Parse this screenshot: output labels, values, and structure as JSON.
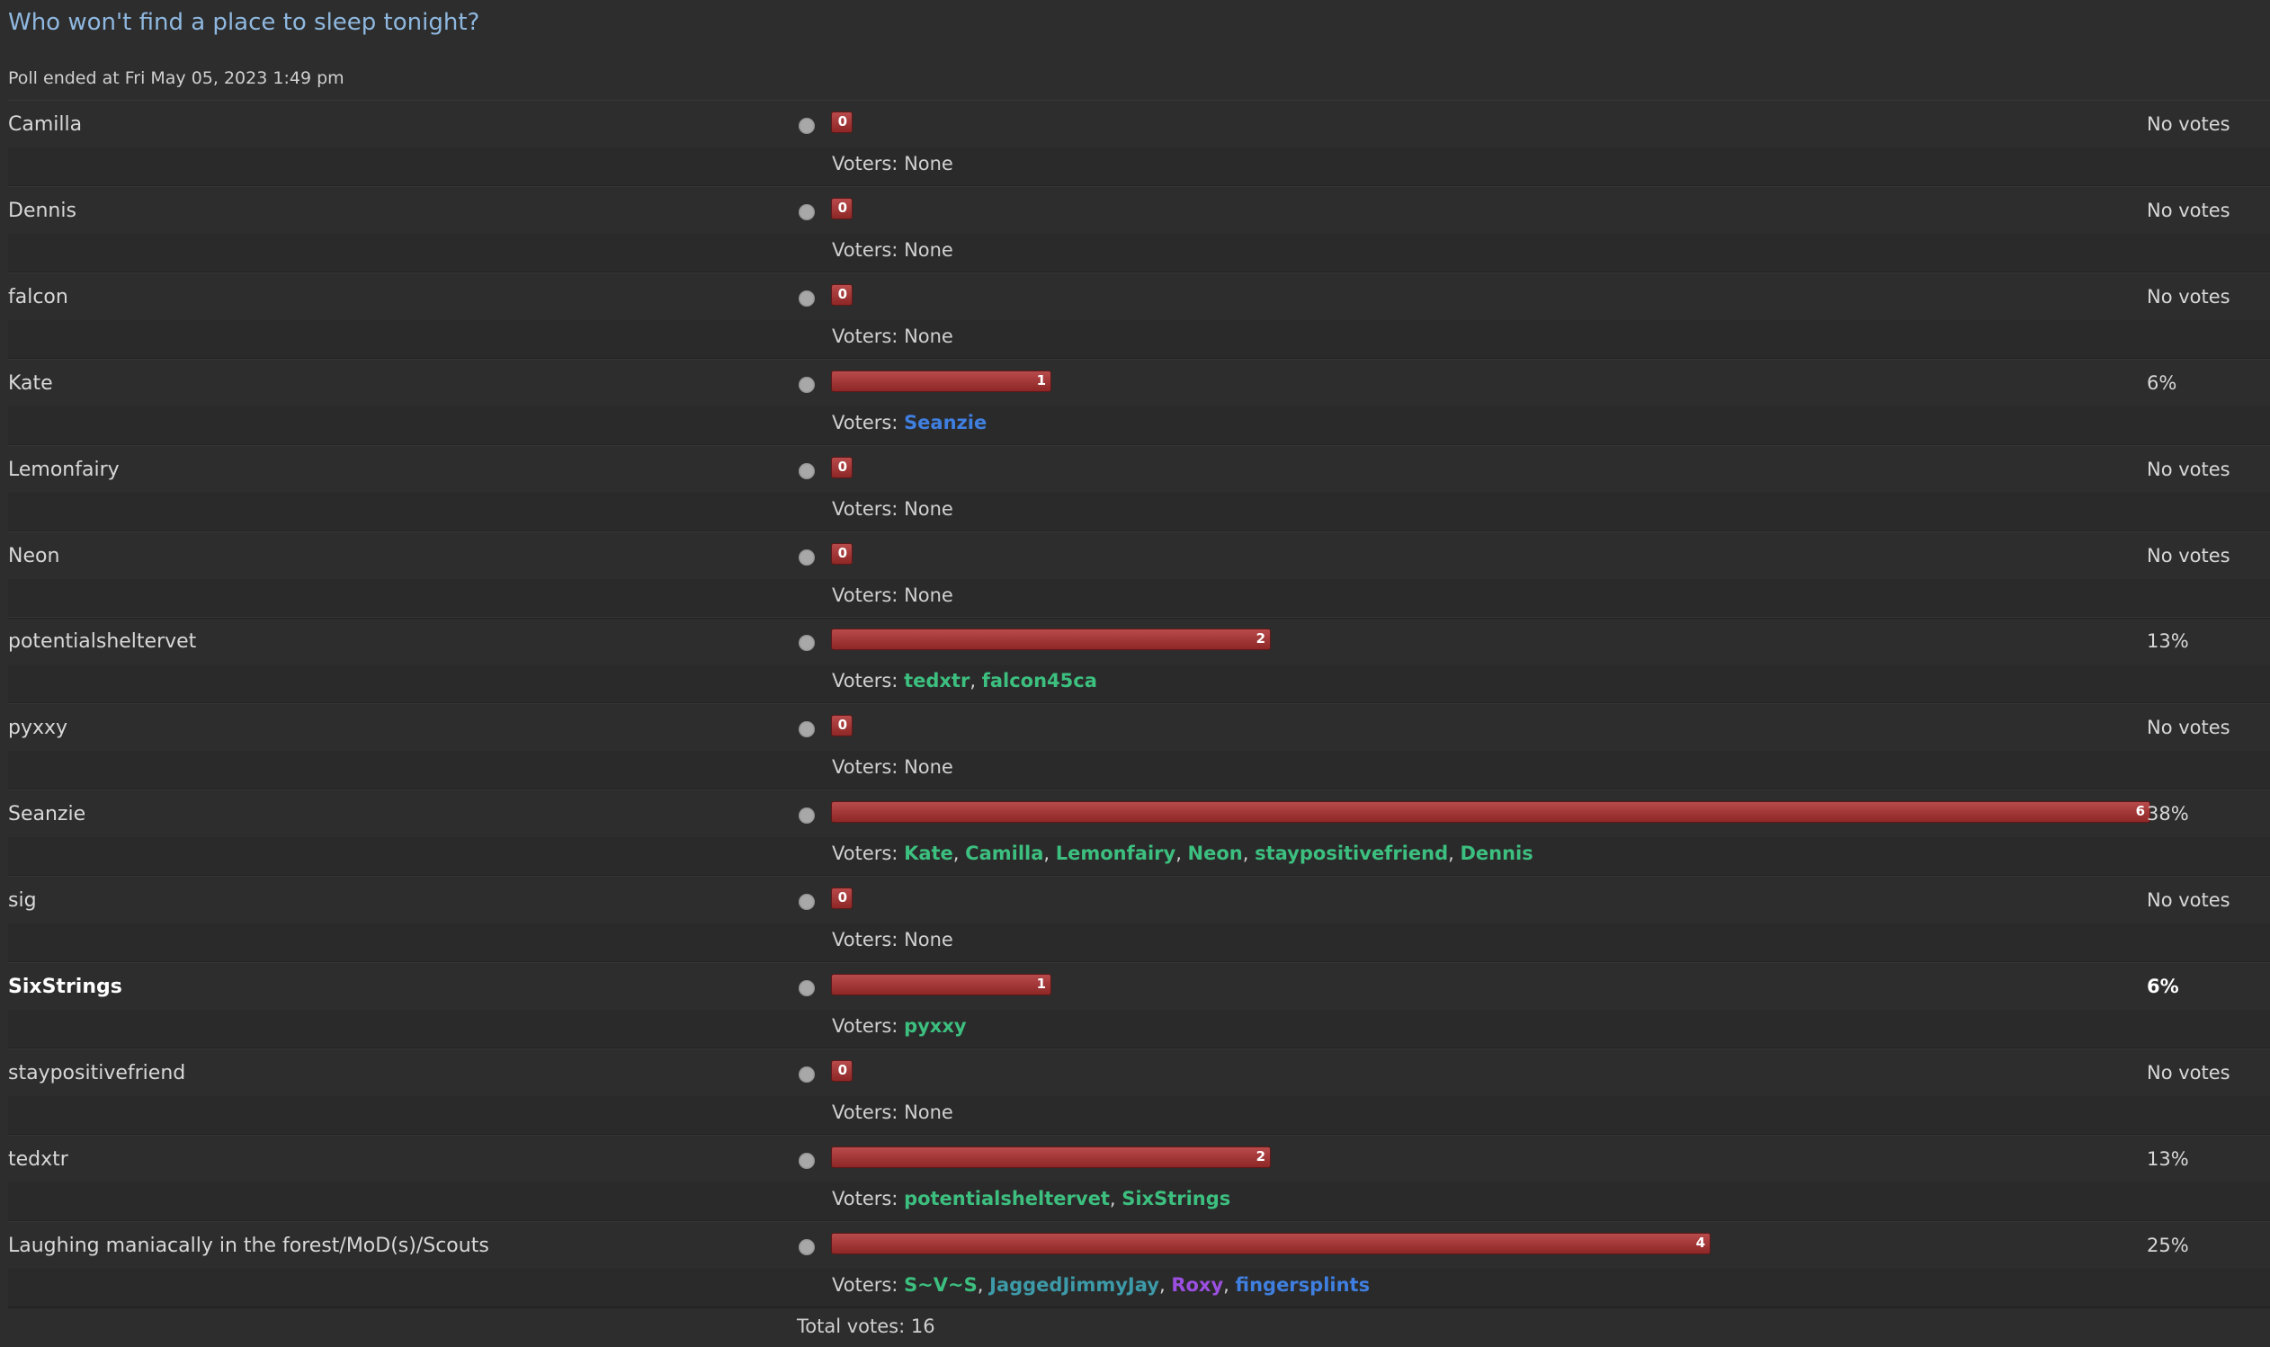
{
  "poll": {
    "title": "Who won't find a place to sleep tonight?",
    "ended_text": "Poll ended at Fri May 05, 2023 1:49 pm",
    "voters_label": "Voters: ",
    "none_text": "None",
    "total_text": "Total votes: 16",
    "max_votes": 6,
    "options": [
      {
        "label": "Camilla",
        "votes": 0,
        "result": "No votes",
        "voters": []
      },
      {
        "label": "Dennis",
        "votes": 0,
        "result": "No votes",
        "voters": []
      },
      {
        "label": "falcon",
        "votes": 0,
        "result": "No votes",
        "voters": []
      },
      {
        "label": "Kate",
        "votes": 1,
        "result": "6%",
        "voters": [
          {
            "name": "Seanzie",
            "color": "#3f7fe0"
          }
        ]
      },
      {
        "label": "Lemonfairy",
        "votes": 0,
        "result": "No votes",
        "voters": []
      },
      {
        "label": "Neon",
        "votes": 0,
        "result": "No votes",
        "voters": []
      },
      {
        "label": "potentialsheltervet",
        "votes": 2,
        "result": "13%",
        "voters": [
          {
            "name": "tedxtr",
            "color": "#3cbf7f"
          },
          {
            "name": "falcon45ca",
            "color": "#3cbf7f"
          }
        ]
      },
      {
        "label": "pyxxy",
        "votes": 0,
        "result": "No votes",
        "voters": []
      },
      {
        "label": "Seanzie",
        "votes": 6,
        "result": "38%",
        "voters": [
          {
            "name": "Kate",
            "color": "#3cbf7f"
          },
          {
            "name": "Camilla",
            "color": "#3cbf7f"
          },
          {
            "name": "Lemonfairy",
            "color": "#3cbf7f"
          },
          {
            "name": "Neon",
            "color": "#3cbf7f"
          },
          {
            "name": "staypositivefriend",
            "color": "#3cbf7f"
          },
          {
            "name": "Dennis",
            "color": "#3cbf7f"
          }
        ]
      },
      {
        "label": "sig",
        "votes": 0,
        "result": "No votes",
        "voters": []
      },
      {
        "label": "SixStrings",
        "votes": 1,
        "result": "6%",
        "bold": true,
        "voters": [
          {
            "name": "pyxxy",
            "color": "#3cbf7f"
          }
        ]
      },
      {
        "label": "staypositivefriend",
        "votes": 0,
        "result": "No votes",
        "voters": []
      },
      {
        "label": "tedxtr",
        "votes": 2,
        "result": "13%",
        "voters": [
          {
            "name": "potentialsheltervet",
            "color": "#3cbf7f"
          },
          {
            "name": "SixStrings",
            "color": "#3cbf7f"
          }
        ]
      },
      {
        "label": "Laughing maniacally in the forest/MoD(s)/Scouts",
        "votes": 4,
        "result": "25%",
        "voters": [
          {
            "name": "S~V~S",
            "color": "#3cbf7f"
          },
          {
            "name": "JaggedJimmyJay",
            "color": "#3d9aa8"
          },
          {
            "name": "Roxy",
            "color": "#9b4fe0"
          },
          {
            "name": "fingersplints",
            "color": "#3f7fe0"
          }
        ]
      }
    ]
  }
}
